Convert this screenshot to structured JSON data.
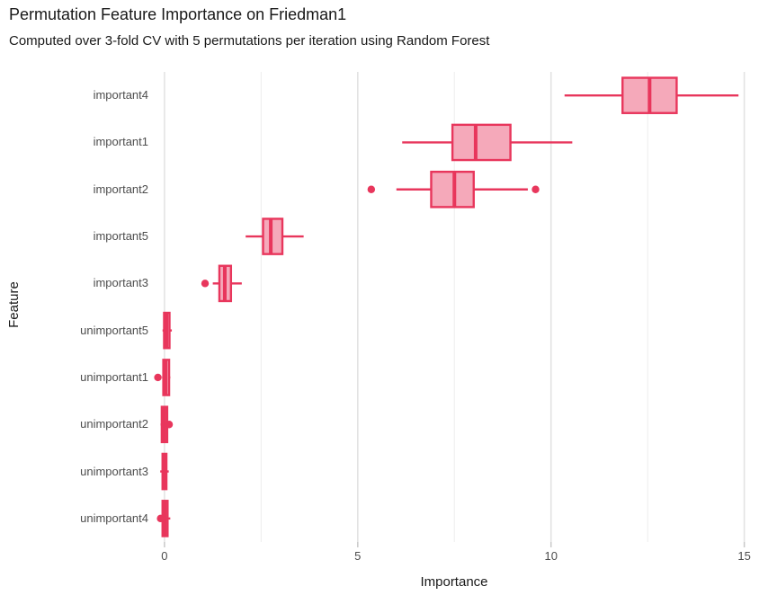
{
  "chart_data": {
    "type": "boxplot",
    "orientation": "horizontal",
    "title": "Permutation Feature Importance on Friedman1",
    "subtitle": "Computed over 3-fold CV with 5 permutations per iteration using Random Forest",
    "xlabel": "Importance",
    "ylabel": "Feature",
    "xlim": [
      -0.3,
      15.66
    ],
    "grid": "vertical-major-and-minor-only",
    "x_ticks": {
      "values": [
        0,
        5,
        10,
        15
      ],
      "labels": [
        "0",
        "5",
        "10",
        "15"
      ]
    },
    "x_minor_ticks": [
      2.5,
      7.5,
      12.5
    ],
    "categories": [
      "important4",
      "important1",
      "important2",
      "important5",
      "important3",
      "unimportant5",
      "unimportant1",
      "unimportant2",
      "unimportant3",
      "unimportant4"
    ],
    "series": [
      {
        "feature": "important4",
        "whisker_low": 10.35,
        "q1": 11.85,
        "median": 12.55,
        "q3": 13.25,
        "whisker_high": 14.85,
        "outliers": []
      },
      {
        "feature": "important1",
        "whisker_low": 6.15,
        "q1": 7.45,
        "median": 8.05,
        "q3": 8.95,
        "whisker_high": 10.55,
        "outliers": []
      },
      {
        "feature": "important2",
        "whisker_low": 6.0,
        "q1": 6.9,
        "median": 7.5,
        "q3": 8.0,
        "whisker_high": 9.4,
        "outliers": [
          5.35,
          9.6
        ]
      },
      {
        "feature": "important5",
        "whisker_low": 2.1,
        "q1": 2.55,
        "median": 2.75,
        "q3": 3.05,
        "whisker_high": 3.6,
        "outliers": []
      },
      {
        "feature": "important3",
        "whisker_low": 1.25,
        "q1": 1.42,
        "median": 1.56,
        "q3": 1.72,
        "whisker_high": 2.0,
        "outliers": [
          1.05
        ]
      },
      {
        "feature": "unimportant5",
        "whisker_low": -0.05,
        "q1": -0.01,
        "median": 0.05,
        "q3": 0.13,
        "whisker_high": 0.19,
        "outliers": []
      },
      {
        "feature": "unimportant1",
        "whisker_low": -0.06,
        "q1": -0.03,
        "median": 0.03,
        "q3": 0.12,
        "whisker_high": 0.15,
        "outliers": [
          -0.17
        ]
      },
      {
        "feature": "unimportant2",
        "whisker_low": -0.1,
        "q1": -0.07,
        "median": 0.0,
        "q3": 0.07,
        "whisker_high": 0.09,
        "outliers": [
          0.12
        ]
      },
      {
        "feature": "unimportant3",
        "whisker_low": -0.11,
        "q1": -0.05,
        "median": 0.01,
        "q3": 0.05,
        "whisker_high": 0.11,
        "outliers": []
      },
      {
        "feature": "unimportant4",
        "whisker_low": -0.13,
        "q1": -0.05,
        "median": 0.01,
        "q3": 0.08,
        "whisker_high": 0.15,
        "outliers": [
          -0.1,
          -0.04
        ]
      }
    ],
    "colors": {
      "box_stroke": "#E8365C",
      "box_fill": "#F5A9BA",
      "grid_major": "#E3E3E3",
      "grid_minor": "#EDEDED",
      "tick_mark": "#C9C9C9",
      "tick_label": "#4D4D4D",
      "text": "#191919",
      "background": "#FFFFFF"
    },
    "legend": "none"
  }
}
